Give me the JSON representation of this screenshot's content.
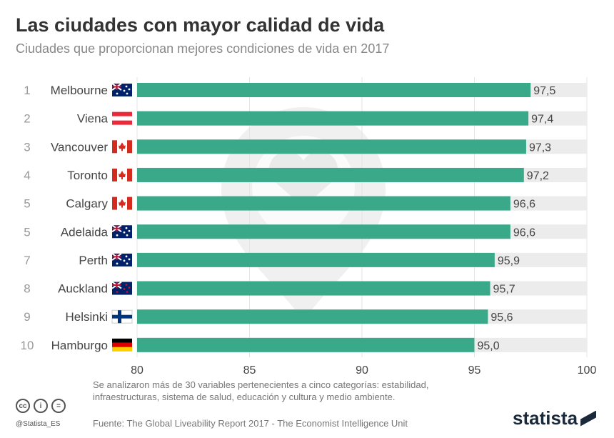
{
  "title": "Las ciudades con mayor calidad de vida",
  "subtitle": "Ciudades que proporcionan mejores condiciones de vida en 2017",
  "footer": {
    "note": "Se analizaron más de 30 variables pertenecientes a cinco categorías: estabilidad, infraestructuras, sistema de salud, educación y cultura y medio ambiente.",
    "source": "Fuente: The Global Liveability Report 2017 -  The Economist Intelligence Unit",
    "handle": "@Statista_ES",
    "logo": "statista",
    "license_icons": [
      "cc",
      "i",
      "="
    ]
  },
  "colors": {
    "bar": "#3aa98a",
    "track": "#ececec",
    "watermark": "#e6e6e6"
  },
  "chart_data": {
    "type": "bar",
    "orientation": "horizontal",
    "ranks": [
      "1",
      "2",
      "3",
      "4",
      "5",
      "5",
      "7",
      "8",
      "9",
      "10"
    ],
    "categories": [
      "Melbourne",
      "Viena",
      "Vancouver",
      "Toronto",
      "Calgary",
      "Adelaida",
      "Perth",
      "Auckland",
      "Helsinki",
      "Hamburgo"
    ],
    "flags": [
      "australia",
      "austria",
      "canada",
      "canada",
      "canada",
      "australia",
      "australia",
      "new-zealand",
      "finland",
      "germany"
    ],
    "values": [
      97.5,
      97.4,
      97.3,
      97.2,
      96.6,
      96.6,
      95.9,
      95.7,
      95.6,
      95.0
    ],
    "value_labels": [
      "97,5",
      "97,4",
      "97,3",
      "97,2",
      "96,6",
      "96,6",
      "95,9",
      "95,7",
      "95,6",
      "95,0"
    ],
    "xlim": [
      80,
      100
    ],
    "xticks": [
      "80",
      "85",
      "90",
      "95",
      "100"
    ],
    "grid": true
  }
}
